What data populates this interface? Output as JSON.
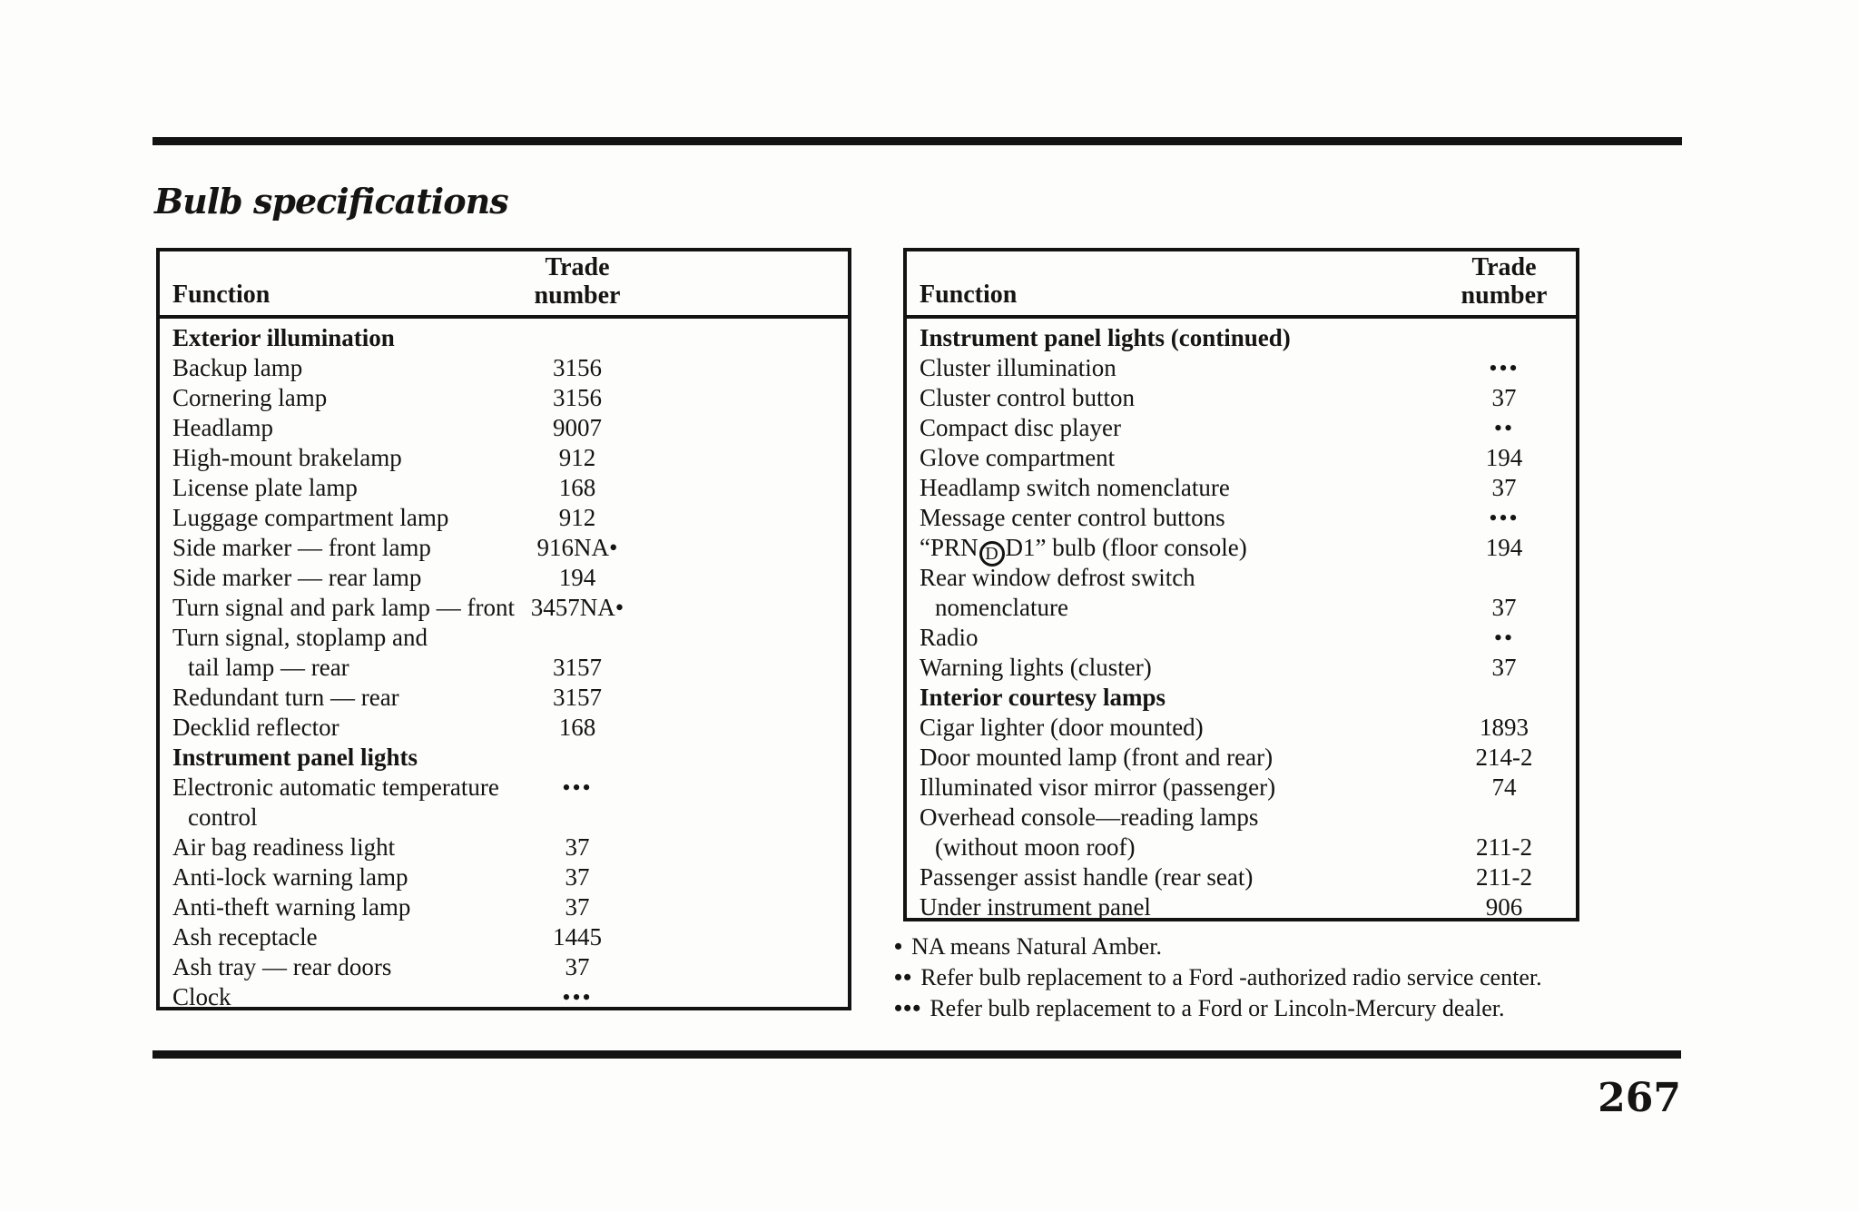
{
  "page": {
    "title": "Bulb specifications",
    "page_number": "267"
  },
  "tables": [
    {
      "id": "left",
      "headers": {
        "function": "Function",
        "trade_line1": "Trade",
        "trade_line2": "number"
      },
      "rows": [
        {
          "label": "Exterior illumination",
          "value": "",
          "section": true
        },
        {
          "label": "Backup lamp",
          "value": "3156"
        },
        {
          "label": "Cornering lamp",
          "value": "3156"
        },
        {
          "label": "Headlamp",
          "value": "9007"
        },
        {
          "label": "High-mount brakelamp",
          "value": "912"
        },
        {
          "label": "License plate lamp",
          "value": "168"
        },
        {
          "label": "Luggage compartment lamp",
          "value": "912"
        },
        {
          "label": "Side marker — front lamp",
          "value": "916NA•"
        },
        {
          "label": "Side marker — rear lamp",
          "value": "194"
        },
        {
          "label": "Turn signal and park lamp — front",
          "value": "3457NA•"
        },
        {
          "label": "Turn signal, stoplamp and",
          "value": ""
        },
        {
          "label": "tail lamp — rear",
          "value": "3157",
          "indent": true
        },
        {
          "label": "Redundant turn — rear",
          "value": "3157"
        },
        {
          "label": "Decklid reflector",
          "value": "168"
        },
        {
          "label": "Instrument panel lights",
          "value": "",
          "section": true
        },
        {
          "label": "Electronic automatic temperature",
          "value": "•••"
        },
        {
          "label": "control",
          "value": "",
          "indent": true
        },
        {
          "label": "Air bag readiness light",
          "value": "37"
        },
        {
          "label": "Anti-lock warning lamp",
          "value": "37"
        },
        {
          "label": "Anti-theft warning lamp",
          "value": "37"
        },
        {
          "label": "Ash receptacle",
          "value": "1445"
        },
        {
          "label": "Ash tray — rear doors",
          "value": "37"
        },
        {
          "label": "Clock",
          "value": "•••"
        }
      ]
    },
    {
      "id": "right",
      "headers": {
        "function": "Function",
        "trade_line1": "Trade",
        "trade_line2": "number"
      },
      "rows": [
        {
          "label": "Instrument panel lights (continued)",
          "value": "",
          "section": true
        },
        {
          "label": "Cluster illumination",
          "value": "•••"
        },
        {
          "label": "Cluster control button",
          "value": "37"
        },
        {
          "label": "Compact disc player",
          "value": "••"
        },
        {
          "label": "Glove compartment",
          "value": "194"
        },
        {
          "label": "Headlamp switch nomenclature",
          "value": "37"
        },
        {
          "label": "Message center control buttons",
          "value": "•••"
        },
        {
          "label_pre": "“PRN",
          "circled": "D",
          "label_post": "D1” bulb (floor console)",
          "value": "194"
        },
        {
          "label": "Rear window defrost switch",
          "value": ""
        },
        {
          "label": "nomenclature",
          "value": "37",
          "indent": true
        },
        {
          "label": "Radio",
          "value": "••"
        },
        {
          "label": "Warning lights (cluster)",
          "value": "37"
        },
        {
          "label": "Interior courtesy lamps",
          "value": "",
          "section": true
        },
        {
          "label": "Cigar lighter (door mounted)",
          "value": "1893"
        },
        {
          "label": "Door mounted lamp (front and rear)",
          "value": "214-2"
        },
        {
          "label": "Illuminated visor mirror (passenger)",
          "value": "74"
        },
        {
          "label": "Overhead console—reading lamps",
          "value": ""
        },
        {
          "label": "(without moon roof)",
          "value": "211-2",
          "indent": true
        },
        {
          "label": "Passenger assist handle (rear seat)",
          "value": "211-2"
        },
        {
          "label": "Under instrument panel",
          "value": "906"
        }
      ]
    }
  ],
  "footnotes": [
    {
      "bullet": "•",
      "text": "NA means Natural Amber."
    },
    {
      "bullet": "••",
      "text": "Refer bulb replacement to a Ford -authorized radio service center."
    },
    {
      "bullet": "•••",
      "text": "Refer bulb replacement to a Ford or Lincoln-Mercury dealer."
    }
  ],
  "colors": {
    "ink": "#131313",
    "paper": "#fdfdfb"
  }
}
